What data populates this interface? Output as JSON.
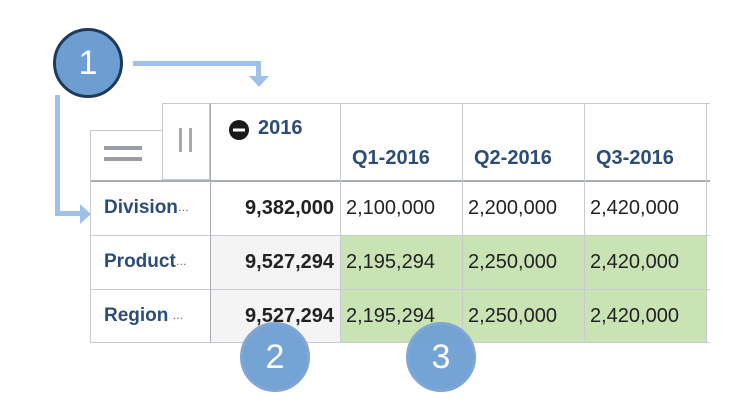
{
  "callouts": [
    "1",
    "2",
    "3"
  ],
  "year_label": "2016",
  "quarters": [
    "Q1-2016",
    "Q2-2016",
    "Q3-2016"
  ],
  "rows": [
    {
      "label": "Division",
      "total": "9,382,000",
      "values": [
        "2,100,000",
        "2,200,000",
        "2,420,000"
      ]
    },
    {
      "label": "Product",
      "total": "9,527,294",
      "values": [
        "2,195,294",
        "2,250,000",
        "2,420,000"
      ]
    },
    {
      "label": "Region",
      "total": "9,527,294",
      "values": [
        "2,195,294",
        "2,250,000",
        "2,420,000"
      ]
    }
  ],
  "colors": {
    "header_text": "#2d4d78",
    "highlight": "#c9e3b4",
    "callout": "#6e9ed1",
    "arrow": "#9fc1e8"
  },
  "icons": {
    "menu": "hamburger-icon",
    "collapse": "minus-circle-icon",
    "pause": "column-drag-icon"
  }
}
